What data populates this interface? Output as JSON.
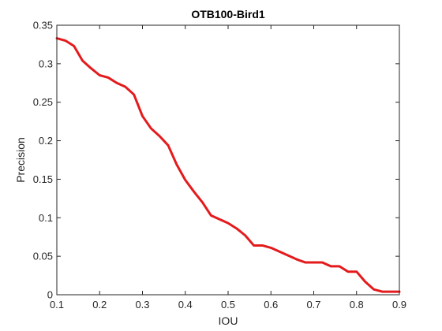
{
  "chart_data": {
    "type": "line",
    "title": "OTB100-Bird1",
    "xlabel": "IOU",
    "ylabel": "Precision",
    "xlim": [
      0.1,
      0.9
    ],
    "ylim": [
      0,
      0.35
    ],
    "x_ticks": [
      "0.1",
      "0.2",
      "0.3",
      "0.4",
      "0.5",
      "0.6",
      "0.7",
      "0.8",
      "0.9"
    ],
    "y_ticks": [
      "0",
      "0.05",
      "0.1",
      "0.15",
      "0.2",
      "0.25",
      "0.3",
      "0.35"
    ],
    "grid": false,
    "series": [
      {
        "color": "#e41a1c",
        "x": [
          0.1,
          0.12,
          0.14,
          0.16,
          0.18,
          0.2,
          0.22,
          0.24,
          0.26,
          0.28,
          0.3,
          0.32,
          0.34,
          0.36,
          0.38,
          0.4,
          0.42,
          0.44,
          0.46,
          0.48,
          0.5,
          0.52,
          0.54,
          0.56,
          0.58,
          0.6,
          0.62,
          0.64,
          0.66,
          0.68,
          0.7,
          0.72,
          0.74,
          0.76,
          0.78,
          0.8,
          0.82,
          0.84,
          0.86,
          0.88,
          0.9
        ],
        "y": [
          0.333,
          0.33,
          0.323,
          0.304,
          0.294,
          0.285,
          0.282,
          0.275,
          0.27,
          0.26,
          0.232,
          0.216,
          0.206,
          0.194,
          0.169,
          0.149,
          0.134,
          0.12,
          0.103,
          0.098,
          0.093,
          0.086,
          0.077,
          0.064,
          0.064,
          0.061,
          0.056,
          0.051,
          0.046,
          0.042,
          0.042,
          0.042,
          0.037,
          0.037,
          0.03,
          0.03,
          0.017,
          0.007,
          0.004,
          0.004,
          0.004
        ]
      }
    ]
  }
}
